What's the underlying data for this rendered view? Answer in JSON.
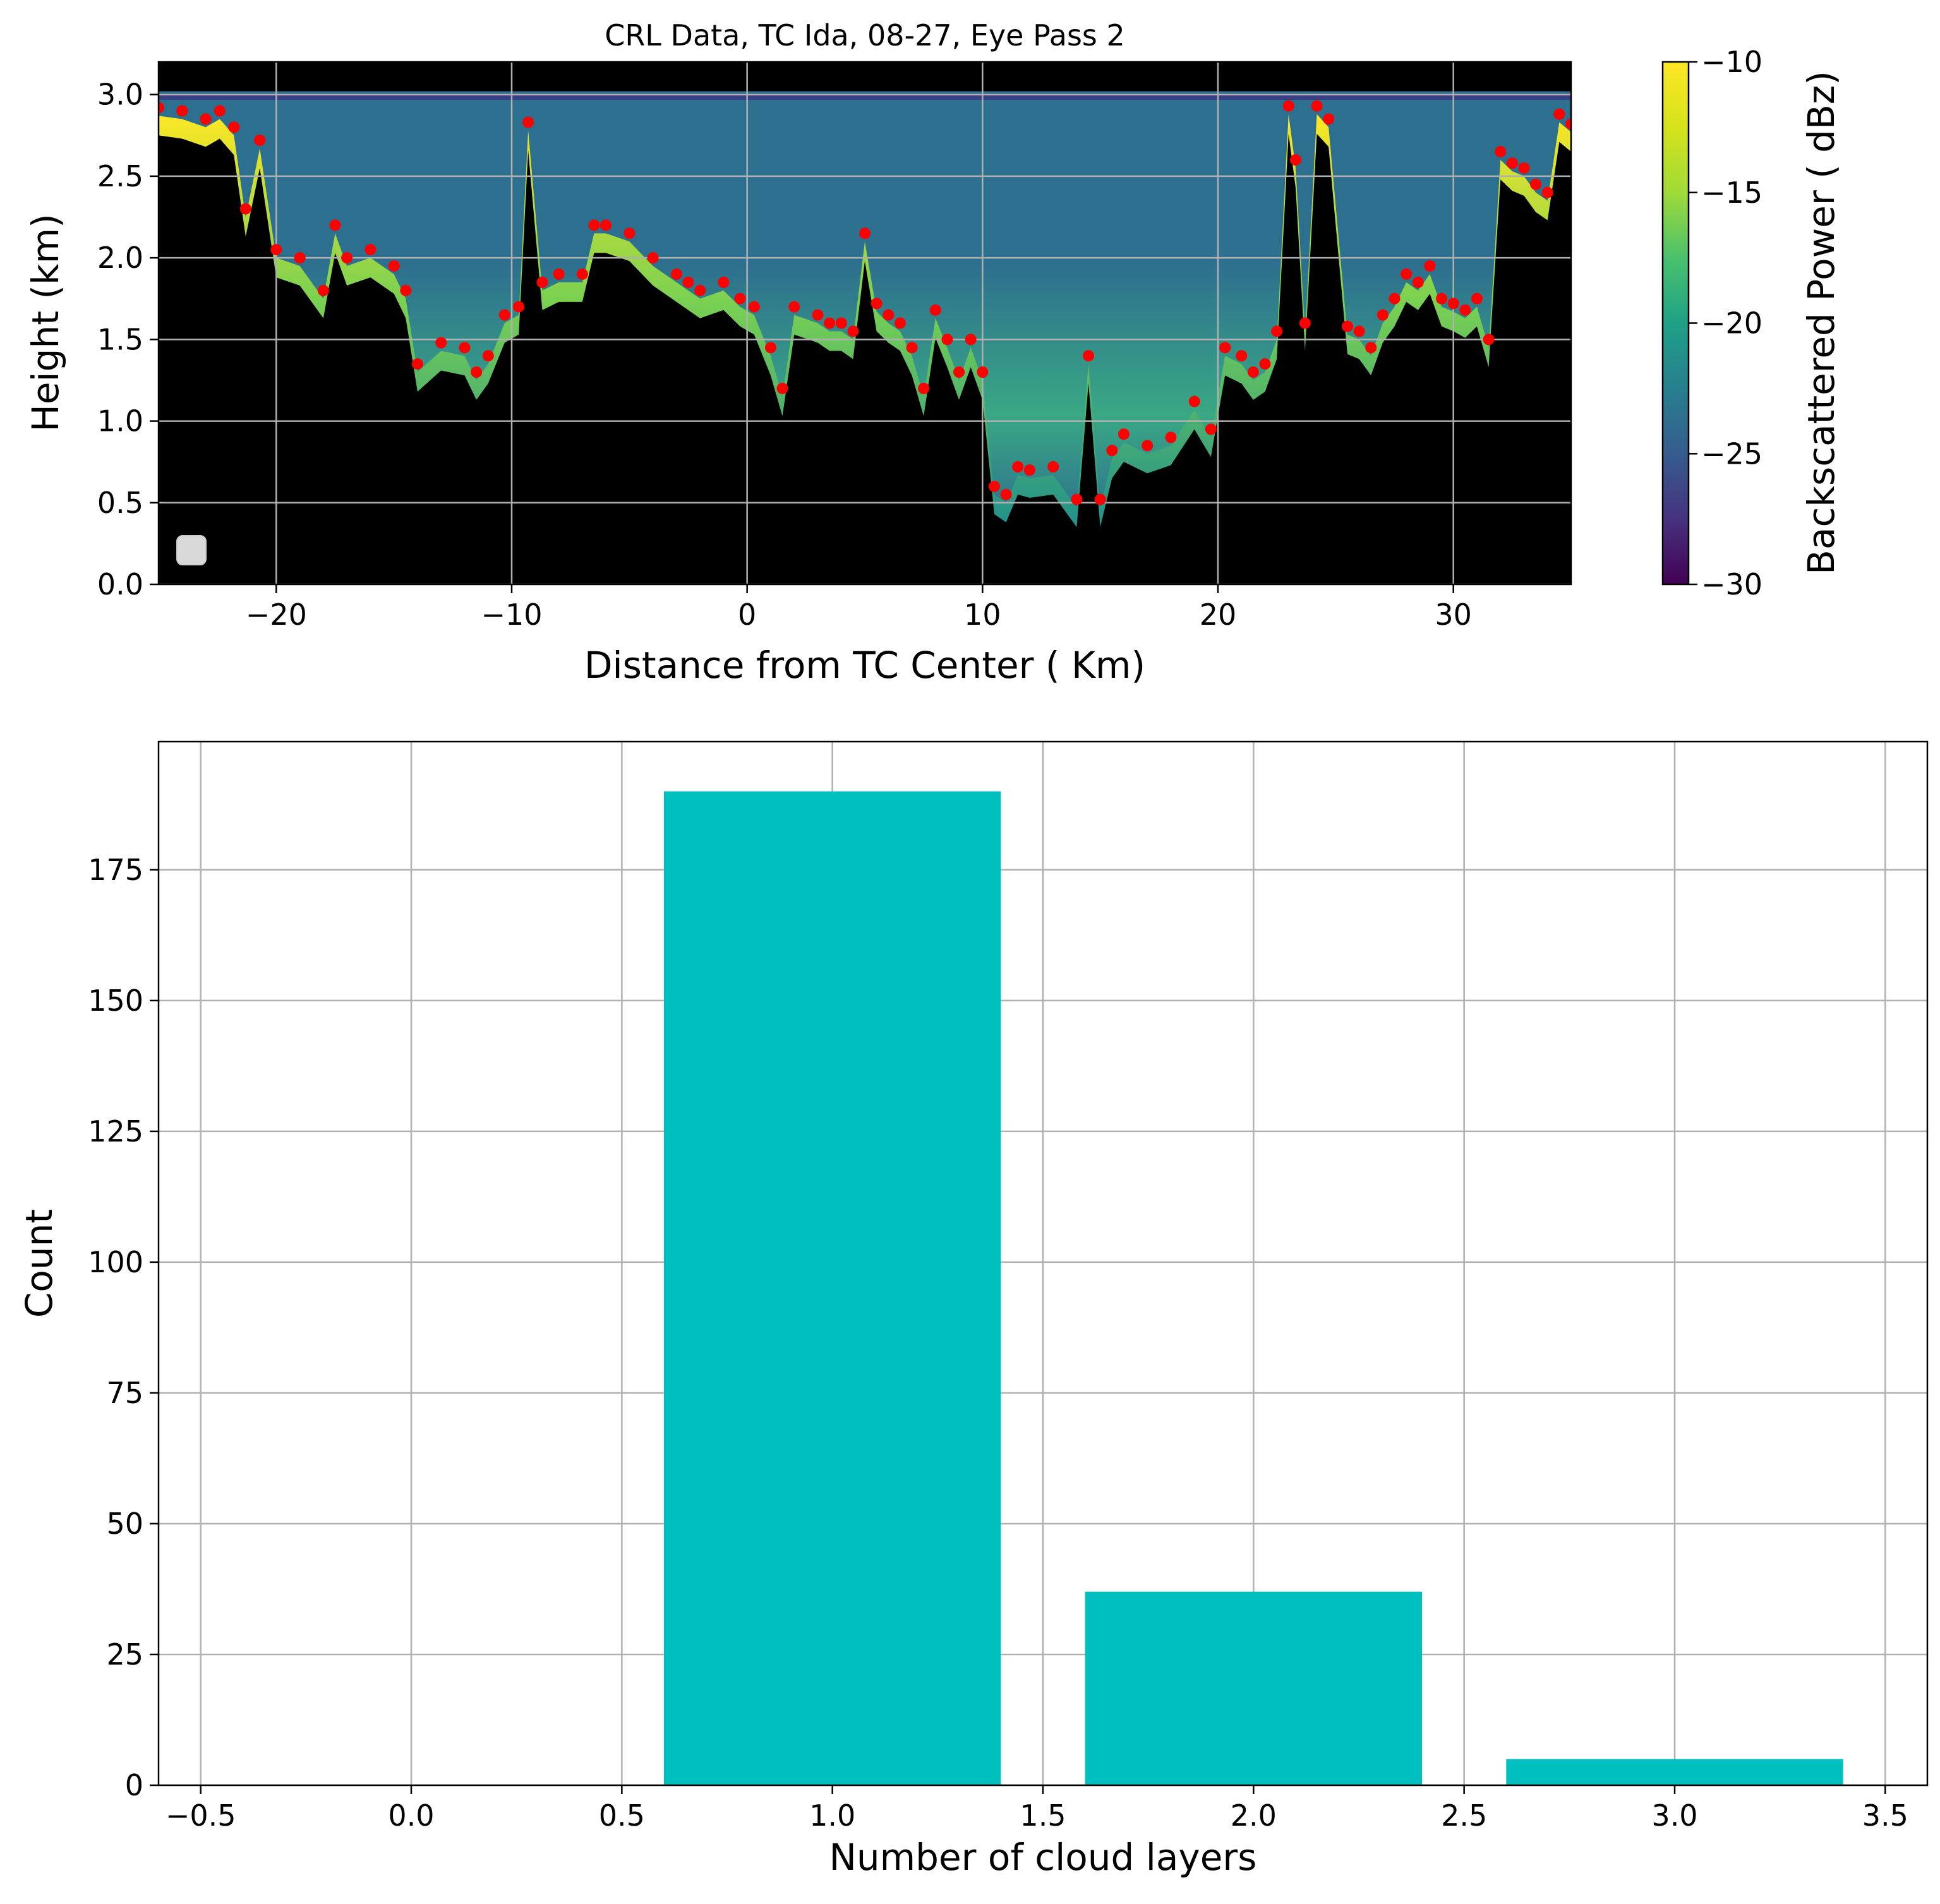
{
  "colors": {
    "bar": "#00bfbf",
    "cloud_top": "#ff0000",
    "background": "#000000",
    "grid": "#b0b0b0"
  },
  "chart_data": [
    {
      "type": "heatmap",
      "title": "CRL Data, TC Ida, 08-27, Eye Pass 2",
      "xlabel": "Distance from TC Center ( Km)",
      "ylabel": "Height (km)",
      "xlim": [
        -25,
        35
      ],
      "ylim": [
        0,
        3.2
      ],
      "xticks": [
        -20,
        -10,
        0,
        10,
        20,
        30
      ],
      "xtick_labels": [
        "−20",
        "−10",
        "0",
        "10",
        "20",
        "30"
      ],
      "yticks": [
        0.0,
        0.5,
        1.0,
        1.5,
        2.0,
        2.5,
        3.0
      ],
      "ytick_labels": [
        "0.0",
        "0.5",
        "1.0",
        "1.5",
        "2.0",
        "2.5",
        "3.0"
      ],
      "grid": true,
      "colormap": "viridis",
      "colorbar": {
        "label": "Backscattered Power ( dBz)",
        "range": [
          -30,
          -10
        ],
        "ticks": [
          -10,
          -15,
          -20,
          -25,
          -30
        ],
        "tick_labels": [
          "−10",
          "−15",
          "−20",
          "−25",
          "−30"
        ]
      },
      "cloud_top": {
        "x": [
          -25,
          -24,
          -23,
          -22.4,
          -21.8,
          -21.3,
          -20.7,
          -20,
          -19,
          -18,
          -17.5,
          -17,
          -16,
          -15,
          -14.5,
          -14,
          -13,
          -12,
          -11.5,
          -11,
          -10.3,
          -9.7,
          -9.3,
          -8.7,
          -8,
          -7,
          -6.5,
          -6,
          -5,
          -4,
          -3,
          -2.5,
          -2,
          -1,
          -0.3,
          0.3,
          1,
          1.5,
          2,
          3,
          3.5,
          4,
          4.5,
          5,
          5.5,
          6,
          6.5,
          7,
          7.5,
          8,
          8.5,
          9,
          9.5,
          10,
          10.5,
          11,
          11.5,
          12,
          13,
          14,
          14.5,
          15,
          15.5,
          16,
          17,
          18,
          19,
          19.7,
          20.3,
          21,
          21.5,
          22,
          22.5,
          23,
          23.3,
          23.7,
          24.2,
          24.7,
          25.5,
          26,
          26.5,
          27,
          27.5,
          28,
          28.5,
          29,
          29.5,
          30,
          30.5,
          31,
          31.5,
          32,
          32.5,
          33,
          33.5,
          34,
          34.5,
          35
        ],
        "y": [
          2.92,
          2.9,
          2.85,
          2.9,
          2.8,
          2.3,
          2.72,
          2.05,
          2.0,
          1.8,
          2.2,
          2.0,
          2.05,
          1.95,
          1.8,
          1.35,
          1.48,
          1.45,
          1.3,
          1.4,
          1.65,
          1.7,
          2.83,
          1.85,
          1.9,
          1.9,
          2.2,
          2.2,
          2.15,
          2.0,
          1.9,
          1.85,
          1.8,
          1.85,
          1.75,
          1.7,
          1.45,
          1.2,
          1.7,
          1.65,
          1.6,
          1.6,
          1.55,
          2.15,
          1.72,
          1.65,
          1.6,
          1.45,
          1.2,
          1.68,
          1.5,
          1.3,
          1.5,
          1.3,
          0.6,
          0.55,
          0.72,
          0.7,
          0.72,
          0.52,
          1.4,
          0.52,
          0.82,
          0.92,
          0.85,
          0.9,
          1.12,
          0.95,
          1.45,
          1.4,
          1.3,
          1.35,
          1.55,
          2.93,
          2.6,
          1.6,
          2.93,
          2.85,
          1.58,
          1.55,
          1.45,
          1.65,
          1.75,
          1.9,
          1.85,
          1.95,
          1.75,
          1.72,
          1.68,
          1.75,
          1.5,
          2.65,
          2.58,
          2.55,
          2.45,
          2.4,
          2.88,
          2.82
        ]
      }
    },
    {
      "type": "bar",
      "xlabel": "Number of cloud layers",
      "ylabel": "Count",
      "categories": [
        1,
        2,
        3
      ],
      "values": [
        190,
        37,
        5
      ],
      "bar_width": 0.8,
      "xlim": [
        -0.6,
        3.6
      ],
      "ylim": [
        0,
        199.5
      ],
      "xticks": [
        -0.5,
        0.0,
        0.5,
        1.0,
        1.5,
        2.0,
        2.5,
        3.0,
        3.5
      ],
      "xtick_labels": [
        "−0.5",
        "0.0",
        "0.5",
        "1.0",
        "1.5",
        "2.0",
        "2.5",
        "3.0",
        "3.5"
      ],
      "yticks": [
        0,
        25,
        50,
        75,
        100,
        125,
        150,
        175
      ],
      "ytick_labels": [
        "0",
        "25",
        "50",
        "75",
        "100",
        "125",
        "150",
        "175"
      ],
      "grid": true
    }
  ]
}
